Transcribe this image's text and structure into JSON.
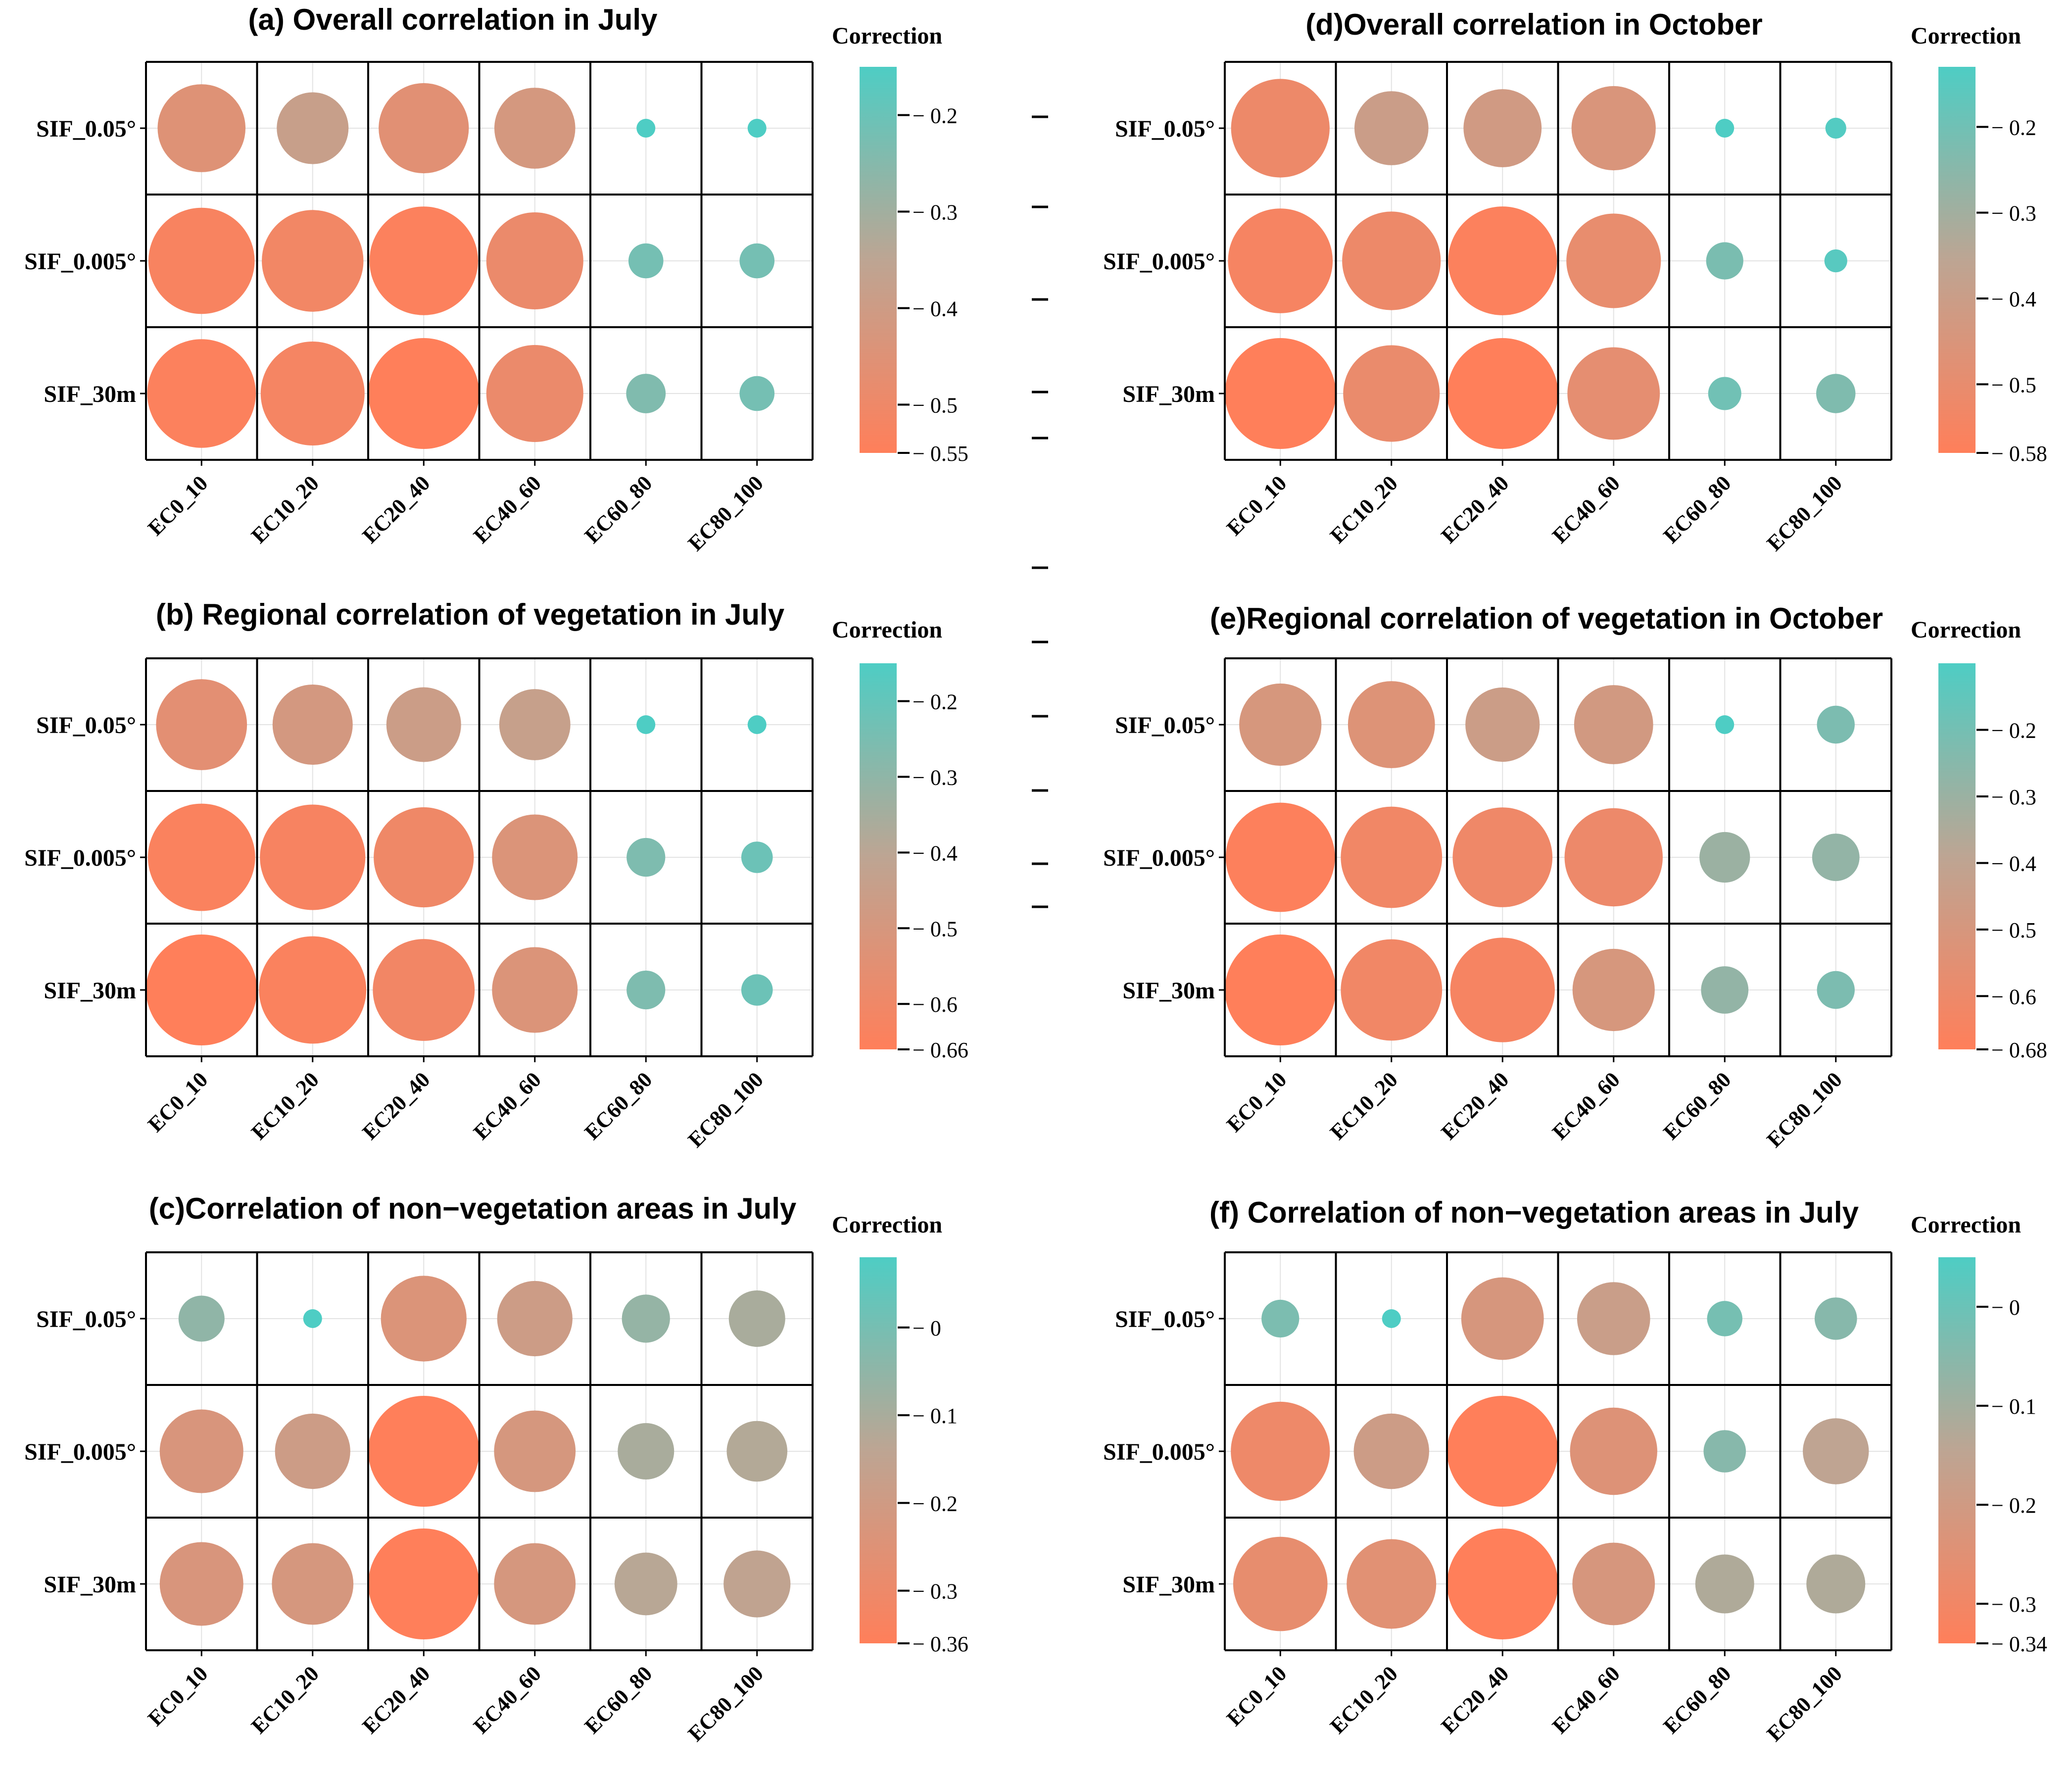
{
  "colors": {
    "low": "#4ECDC4",
    "mid": "#BDA593",
    "high": "#FF7F5A",
    "grid": "#E3E3E3",
    "border": "#000000",
    "stray_tick": "#000000"
  },
  "stray_ticks": [
    1,
    2,
    3,
    4,
    5,
    6,
    7,
    8,
    9,
    10,
    11
  ],
  "chart_data": [
    {
      "id": "a",
      "type": "bubble-matrix",
      "title": "(a)  Overall correlation in July",
      "legend_title": "Correction",
      "rows": [
        "SIF_0.05°",
        "SIF_0.005°",
        "SIF_30m"
      ],
      "cols": [
        "EC0_10",
        "EC10_20",
        "EC20_40",
        "EC40_60",
        "EC60_80",
        "EC80_100"
      ],
      "color_range": [
        0.15,
        0.55
      ],
      "legend_ticks": [
        {
          "v": 0.2,
          "label": "0.2"
        },
        {
          "v": 0.3,
          "label": "0.3"
        },
        {
          "v": 0.4,
          "label": "0.4"
        },
        {
          "v": 0.5,
          "label": "0.5"
        },
        {
          "v": 0.55,
          "label": "0.55"
        }
      ],
      "values": [
        [
          0.45,
          0.38,
          0.46,
          0.42,
          0.15,
          0.15
        ],
        [
          0.53,
          0.51,
          0.54,
          0.49,
          0.22,
          0.22
        ],
        [
          0.54,
          0.52,
          0.55,
          0.49,
          0.24,
          0.22
        ]
      ]
    },
    {
      "id": "b",
      "type": "bubble-matrix",
      "title": "(b)  Regional correlation of vegetation in July",
      "legend_title": "Correction",
      "rows": [
        "SIF_0.05°",
        "SIF_0.005°",
        "SIF_30m"
      ],
      "cols": [
        "EC0_10",
        "EC10_20",
        "EC20_40",
        "EC40_60",
        "EC60_80",
        "EC80_100"
      ],
      "color_range": [
        0.15,
        0.66
      ],
      "legend_ticks": [
        {
          "v": 0.2,
          "label": "0.2"
        },
        {
          "v": 0.3,
          "label": "0.3"
        },
        {
          "v": 0.4,
          "label": "0.4"
        },
        {
          "v": 0.5,
          "label": "0.5"
        },
        {
          "v": 0.6,
          "label": "0.6"
        },
        {
          "v": 0.66,
          "label": "0.66"
        }
      ],
      "values": [
        [
          0.55,
          0.49,
          0.46,
          0.44,
          0.15,
          0.15
        ],
        [
          0.64,
          0.63,
          0.6,
          0.52,
          0.26,
          0.22
        ],
        [
          0.66,
          0.64,
          0.61,
          0.52,
          0.26,
          0.22
        ]
      ]
    },
    {
      "id": "c",
      "type": "bubble-matrix",
      "title": "(c)Correlation of non−vegetation areas in July",
      "legend_title": "Correction",
      "rows": [
        "SIF_0.05°",
        "SIF_0.005°",
        "SIF_30m"
      ],
      "cols": [
        "EC0_10",
        "EC10_20",
        "EC20_40",
        "EC40_60",
        "EC60_80",
        "EC80_100"
      ],
      "color_range": [
        -0.08,
        0.36
      ],
      "legend_ticks": [
        {
          "v": 0.0,
          "label": "0"
        },
        {
          "v": 0.1,
          "label": "0.1"
        },
        {
          "v": 0.2,
          "label": "0.2"
        },
        {
          "v": 0.3,
          "label": "0.3"
        },
        {
          "v": 0.36,
          "label": "0.36"
        }
      ],
      "values": [
        [
          0.05,
          -0.08,
          0.24,
          0.19,
          0.06,
          0.1
        ],
        [
          0.23,
          0.19,
          0.36,
          0.22,
          0.1,
          0.12
        ],
        [
          0.23,
          0.22,
          0.36,
          0.22,
          0.13,
          0.15
        ]
      ]
    },
    {
      "id": "d",
      "type": "bubble-matrix",
      "title": "(d)Overall correlation in October",
      "legend_title": "Correction",
      "rows": [
        "SIF_0.05°",
        "SIF_0.005°",
        "SIF_30m"
      ],
      "cols": [
        "EC0_10",
        "EC10_20",
        "EC20_40",
        "EC40_60",
        "EC60_80",
        "EC80_100"
      ],
      "color_range": [
        0.13,
        0.58
      ],
      "legend_ticks": [
        {
          "v": 0.2,
          "label": "0.2"
        },
        {
          "v": 0.3,
          "label": "0.3"
        },
        {
          "v": 0.4,
          "label": "0.4"
        },
        {
          "v": 0.5,
          "label": "0.5"
        },
        {
          "v": 0.58,
          "label": "0.58"
        }
      ],
      "values": [
        [
          0.52,
          0.4,
          0.42,
          0.45,
          0.13,
          0.14
        ],
        [
          0.55,
          0.52,
          0.57,
          0.5,
          0.22,
          0.15
        ],
        [
          0.58,
          0.51,
          0.58,
          0.49,
          0.2,
          0.23
        ]
      ]
    },
    {
      "id": "e",
      "type": "bubble-matrix",
      "title": "(e)Regional correlation of vegetation in October",
      "legend_title": "Correction",
      "rows": [
        "SIF_0.05°",
        "SIF_0.005°",
        "SIF_30m"
      ],
      "cols": [
        "EC0_10",
        "EC10_20",
        "EC20_40",
        "EC40_60",
        "EC60_80",
        "EC80_100"
      ],
      "color_range": [
        0.1,
        0.68
      ],
      "legend_ticks": [
        {
          "v": 0.2,
          "label": "0.2"
        },
        {
          "v": 0.3,
          "label": "0.3"
        },
        {
          "v": 0.4,
          "label": "0.4"
        },
        {
          "v": 0.5,
          "label": "0.5"
        },
        {
          "v": 0.6,
          "label": "0.6"
        },
        {
          "v": 0.68,
          "label": "0.68"
        }
      ],
      "values": [
        [
          0.5,
          0.53,
          0.45,
          0.48,
          0.1,
          0.22
        ],
        [
          0.67,
          0.62,
          0.61,
          0.6,
          0.3,
          0.28
        ],
        [
          0.68,
          0.62,
          0.64,
          0.5,
          0.28,
          0.22
        ]
      ]
    },
    {
      "id": "f",
      "type": "bubble-matrix",
      "title": "(f) Correlation of non−vegetation areas in July",
      "legend_title": "Correction",
      "rows": [
        "SIF_0.05°",
        "SIF_0.005°",
        "SIF_30m"
      ],
      "cols": [
        "EC0_10",
        "EC10_20",
        "EC20_40",
        "EC40_60",
        "EC60_80",
        "EC80_100"
      ],
      "color_range": [
        -0.05,
        0.34
      ],
      "legend_ticks": [
        {
          "v": 0.0,
          "label": "0"
        },
        {
          "v": 0.1,
          "label": "0.1"
        },
        {
          "v": 0.2,
          "label": "0.2"
        },
        {
          "v": 0.3,
          "label": "0.3"
        },
        {
          "v": 0.34,
          "label": "0.34"
        }
      ],
      "values": [
        [
          0.03,
          -0.05,
          0.22,
          0.18,
          0.02,
          0.05
        ],
        [
          0.29,
          0.19,
          0.34,
          0.24,
          0.05,
          0.15
        ],
        [
          0.27,
          0.25,
          0.34,
          0.22,
          0.12,
          0.12
        ]
      ]
    }
  ]
}
